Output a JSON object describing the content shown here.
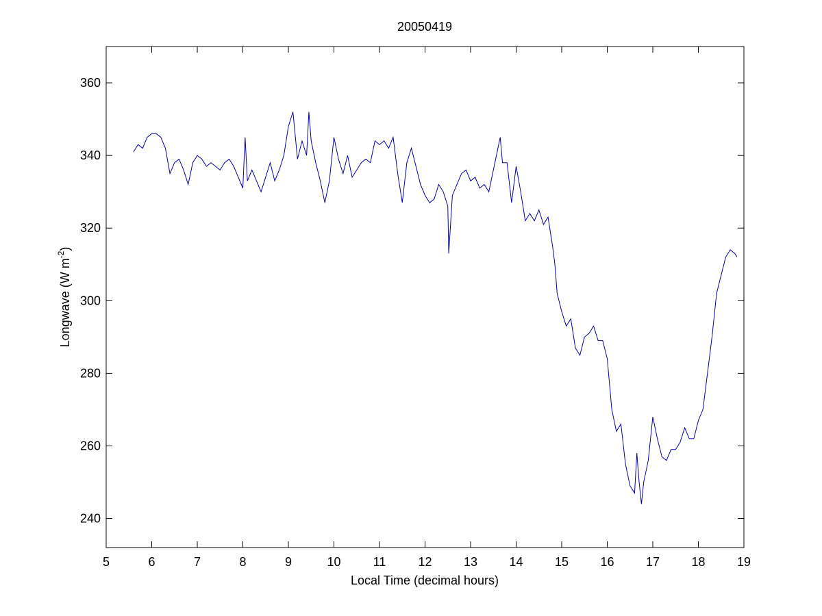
{
  "chart_data": {
    "type": "line",
    "title": "20050419",
    "xlabel": "Local Time (decimal hours)",
    "ylabel": [
      "Longwave (W m",
      "-2",
      ")"
    ],
    "xlim": [
      5,
      19
    ],
    "xticks": [
      5,
      6,
      7,
      8,
      9,
      10,
      11,
      12,
      13,
      14,
      15,
      16,
      17,
      18,
      19
    ],
    "ylim": [
      232,
      370
    ],
    "yticks": [
      240,
      260,
      280,
      300,
      320,
      340,
      360
    ],
    "grid": false,
    "series": [
      {
        "color": "#0000a0",
        "x": [
          5.6,
          5.7,
          5.8,
          5.9,
          6.0,
          6.1,
          6.2,
          6.3,
          6.4,
          6.5,
          6.6,
          6.7,
          6.8,
          6.9,
          7.0,
          7.1,
          7.2,
          7.3,
          7.4,
          7.5,
          7.6,
          7.7,
          7.8,
          7.9,
          8.0,
          8.05,
          8.1,
          8.2,
          8.3,
          8.4,
          8.5,
          8.6,
          8.7,
          8.8,
          8.9,
          9.0,
          9.1,
          9.2,
          9.3,
          9.4,
          9.45,
          9.5,
          9.6,
          9.7,
          9.8,
          9.9,
          10.0,
          10.1,
          10.2,
          10.3,
          10.4,
          10.5,
          10.6,
          10.7,
          10.8,
          10.9,
          11.0,
          11.1,
          11.2,
          11.3,
          11.4,
          11.5,
          11.6,
          11.7,
          11.8,
          11.9,
          12.0,
          12.1,
          12.2,
          12.3,
          12.4,
          12.5,
          12.52,
          12.6,
          12.7,
          12.8,
          12.9,
          13.0,
          13.1,
          13.2,
          13.3,
          13.4,
          13.5,
          13.6,
          13.65,
          13.7,
          13.8,
          13.9,
          14.0,
          14.1,
          14.2,
          14.3,
          14.4,
          14.5,
          14.6,
          14.7,
          14.8,
          14.85,
          14.9,
          15.0,
          15.1,
          15.2,
          15.3,
          15.4,
          15.5,
          15.6,
          15.7,
          15.8,
          15.9,
          16.0,
          16.1,
          16.2,
          16.3,
          16.4,
          16.5,
          16.6,
          16.65,
          16.7,
          16.75,
          16.8,
          16.9,
          17.0,
          17.1,
          17.2,
          17.3,
          17.4,
          17.5,
          17.6,
          17.7,
          17.8,
          17.9,
          18.0,
          18.1,
          18.2,
          18.3,
          18.4,
          18.5,
          18.6,
          18.7,
          18.8,
          18.85
        ],
        "values": [
          341,
          343,
          342,
          345,
          346,
          346,
          345,
          342,
          335,
          338,
          339,
          336,
          332,
          338,
          340,
          339,
          337,
          338,
          337,
          336,
          338,
          339,
          337,
          334,
          331,
          345,
          333,
          336,
          333,
          330,
          334,
          338,
          333,
          336,
          340,
          348,
          352,
          339,
          344,
          340,
          352,
          344,
          338,
          333,
          327,
          333,
          345,
          339,
          335,
          340,
          334,
          336,
          338,
          339,
          338,
          344,
          343,
          344,
          342,
          345,
          335,
          327,
          338,
          342,
          337,
          332,
          329,
          327,
          328,
          332,
          330,
          326,
          313,
          329,
          332,
          335,
          336,
          333,
          334,
          331,
          332,
          330,
          336,
          342,
          345,
          338,
          338,
          327,
          337,
          330,
          322,
          324,
          322,
          325,
          321,
          323,
          315,
          310,
          302,
          297,
          293,
          295,
          287,
          285,
          290,
          291,
          293,
          289,
          289,
          284,
          270,
          264,
          266,
          255,
          249,
          247,
          258,
          250,
          244,
          250,
          256,
          268,
          262,
          257,
          256,
          259,
          259,
          261,
          265,
          262,
          262,
          267,
          270,
          280,
          290,
          302,
          307,
          312,
          314,
          313,
          312
        ]
      }
    ]
  }
}
